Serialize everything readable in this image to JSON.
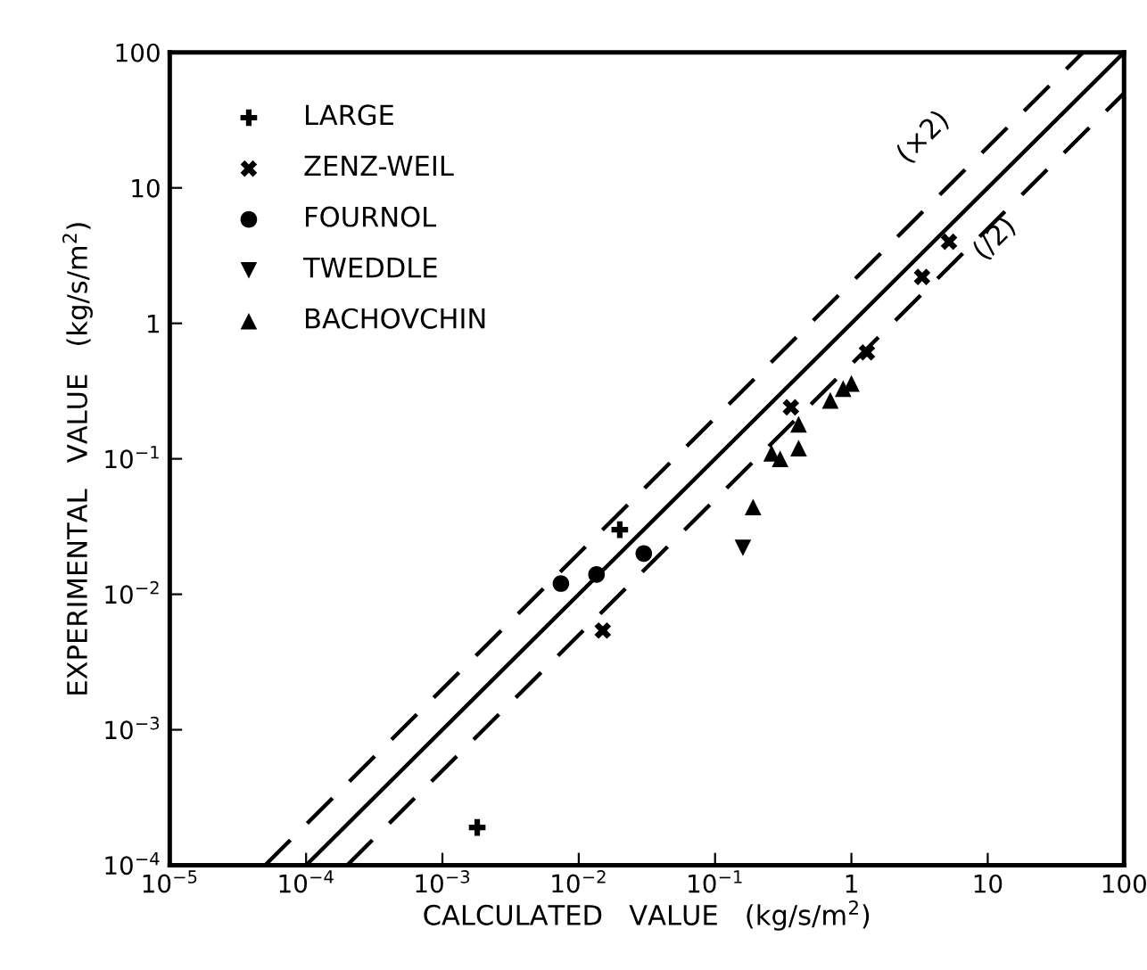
{
  "chart_data": {
    "type": "scatter",
    "xlabel": "CALCULATED   VALUE   (kg/s/m$^{2}$)",
    "ylabel": "EXPERIMENTAL   VALUE   (kg/s/m$^{2}$)",
    "log": "xy",
    "xlim": [
      1e-05,
      100
    ],
    "ylim": [
      0.0001,
      100
    ],
    "xticks": [
      {
        "value": 1e-05,
        "label": "10$^{−5}$"
      },
      {
        "value": 0.0001,
        "label": "10$^{−4}$"
      },
      {
        "value": 0.001,
        "label": "10$^{−3}$"
      },
      {
        "value": 0.01,
        "label": "10$^{−2}$"
      },
      {
        "value": 0.1,
        "label": "10$^{−1}$"
      },
      1,
      10,
      100
    ],
    "yticks": [
      {
        "value": 0.0001,
        "label": "10$^{−4}$"
      },
      {
        "value": 0.001,
        "label": "10$^{−3}$"
      },
      {
        "value": 0.01,
        "label": "10$^{−2}$"
      },
      {
        "value": 0.1,
        "label": "10$^{−1}$"
      },
      1,
      10,
      100
    ],
    "grid": false,
    "legend": "top left",
    "series": [
      {
        "name": "LARGE",
        "color": "#000000",
        "marker": "plus",
        "x": [
          0.0018,
          0.02
        ],
        "values": [
          0.00019,
          0.03
        ]
      },
      {
        "name": "ZENZ-WEIL",
        "color": "#000000",
        "marker": "cross",
        "x": [
          0.015,
          0.36,
          1.3,
          3.3,
          5.2
        ],
        "values": [
          0.0054,
          0.24,
          0.61,
          2.2,
          4.0
        ]
      },
      {
        "name": "FOURNOL",
        "color": "#000000",
        "marker": "circle",
        "x": [
          0.0074,
          0.0135,
          0.03
        ],
        "values": [
          0.012,
          0.014,
          0.02
        ]
      },
      {
        "name": "TWEDDLE",
        "color": "#000000",
        "marker": "triangle-down",
        "x": [
          0.16
        ],
        "values": [
          0.022
        ]
      },
      {
        "name": "BACHOVCHIN",
        "color": "#000000",
        "marker": "triangle",
        "x": [
          0.19,
          0.26,
          0.3,
          0.41,
          0.41,
          0.7,
          0.87,
          1.0
        ],
        "values": [
          0.044,
          0.11,
          0.1,
          0.12,
          0.18,
          0.27,
          0.33,
          0.36
        ]
      },
      {
        "type": "line",
        "color": "#000000",
        "line_style": "solid",
        "x": [
          0.0001,
          100
        ],
        "values": [
          0.0001,
          100
        ]
      },
      {
        "type": "line",
        "color": "#000000",
        "line_style": "dashed",
        "x": [
          5e-05,
          50
        ],
        "values": [
          0.0001,
          100
        ]
      },
      {
        "type": "line",
        "color": "#000000",
        "line_style": "dashed",
        "x": [
          0.0002,
          100
        ],
        "values": [
          0.0001,
          50
        ]
      }
    ],
    "annotations": [
      "(×2)",
      "(/2)"
    ]
  }
}
